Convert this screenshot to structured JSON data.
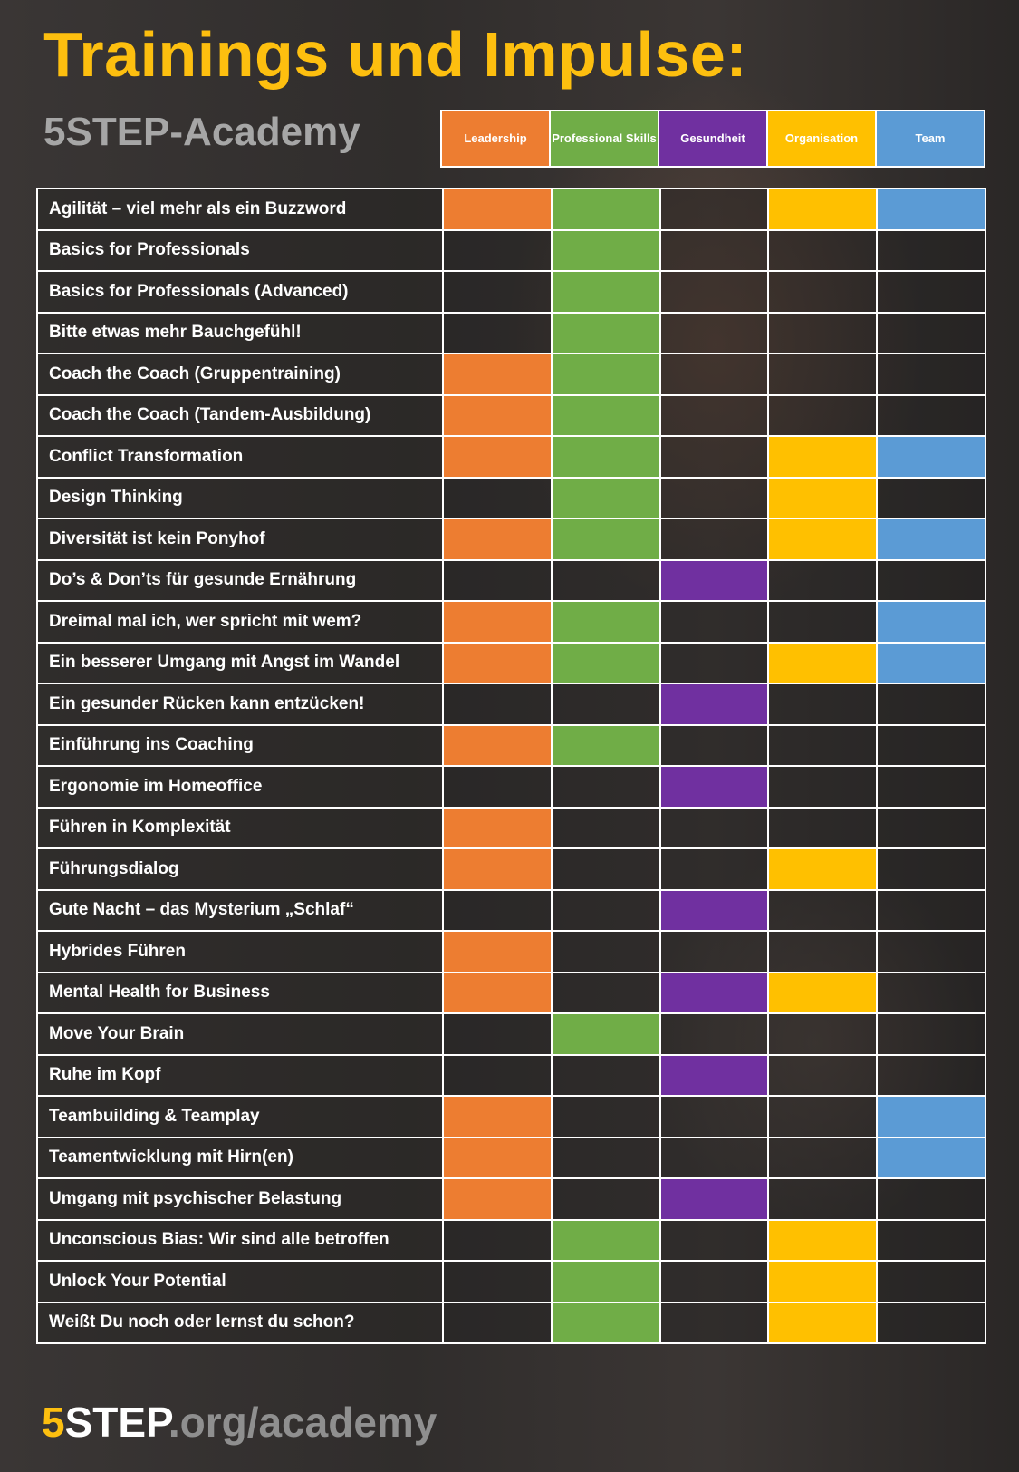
{
  "title": "Trainings und Impulse:",
  "subtitle": "5STEP-Academy",
  "categories": [
    {
      "label": "Leadership",
      "color": "#ed7d31"
    },
    {
      "label": "Professional Skills",
      "color": "#70ad47"
    },
    {
      "label": "Gesundheit",
      "color": "#7030a0"
    },
    {
      "label": "Organisation",
      "color": "#ffc000"
    },
    {
      "label": "Team",
      "color": "#5b9bd5"
    }
  ],
  "rows": [
    {
      "label": "Agilität – viel mehr als ein Buzzword",
      "marks": [
        1,
        1,
        0,
        1,
        1
      ]
    },
    {
      "label": "Basics for Professionals",
      "marks": [
        0,
        1,
        0,
        0,
        0
      ]
    },
    {
      "label": "Basics for Professionals (Advanced)",
      "marks": [
        0,
        1,
        0,
        0,
        0
      ]
    },
    {
      "label": "Bitte etwas mehr Bauchgefühl!",
      "marks": [
        0,
        1,
        0,
        0,
        0
      ]
    },
    {
      "label": "Coach the Coach (Gruppentraining)",
      "marks": [
        1,
        1,
        0,
        0,
        0
      ]
    },
    {
      "label": "Coach the Coach (Tandem-Ausbildung)",
      "marks": [
        1,
        1,
        0,
        0,
        0
      ]
    },
    {
      "label": "Conflict Transformation",
      "marks": [
        1,
        1,
        0,
        1,
        1
      ]
    },
    {
      "label": "Design Thinking",
      "marks": [
        0,
        1,
        0,
        1,
        0
      ]
    },
    {
      "label": "Diversität ist kein Ponyhof",
      "marks": [
        1,
        1,
        0,
        1,
        1
      ]
    },
    {
      "label": "Do’s & Don’ts für gesunde Ernährung",
      "marks": [
        0,
        0,
        1,
        0,
        0
      ]
    },
    {
      "label": "Dreimal mal ich, wer spricht mit wem?",
      "marks": [
        1,
        1,
        0,
        0,
        1
      ]
    },
    {
      "label": "Ein besserer Umgang mit Angst im Wandel",
      "marks": [
        1,
        1,
        0,
        1,
        1
      ]
    },
    {
      "label": "Ein gesunder Rücken kann entzücken!",
      "marks": [
        0,
        0,
        1,
        0,
        0
      ]
    },
    {
      "label": "Einführung ins Coaching",
      "marks": [
        1,
        1,
        0,
        0,
        0
      ]
    },
    {
      "label": "Ergonomie im Homeoffice",
      "marks": [
        0,
        0,
        1,
        0,
        0
      ]
    },
    {
      "label": "Führen in Komplexität",
      "marks": [
        1,
        0,
        0,
        0,
        0
      ]
    },
    {
      "label": "Führungsdialog",
      "marks": [
        1,
        0,
        0,
        1,
        0
      ]
    },
    {
      "label": "Gute Nacht – das Mysterium „Schlaf“",
      "marks": [
        0,
        0,
        1,
        0,
        0
      ]
    },
    {
      "label": "Hybrides Führen",
      "marks": [
        1,
        0,
        0,
        0,
        0
      ]
    },
    {
      "label": "Mental Health for Business",
      "marks": [
        1,
        0,
        1,
        1,
        0
      ]
    },
    {
      "label": "Move Your Brain",
      "marks": [
        0,
        1,
        0,
        0,
        0
      ]
    },
    {
      "label": "Ruhe im Kopf",
      "marks": [
        0,
        0,
        1,
        0,
        0
      ]
    },
    {
      "label": "Teambuilding & Teamplay",
      "marks": [
        1,
        0,
        0,
        0,
        1
      ]
    },
    {
      "label": "Teamentwicklung mit Hirn(en)",
      "marks": [
        1,
        0,
        0,
        0,
        1
      ]
    },
    {
      "label": "Umgang mit psychischer Belastung",
      "marks": [
        1,
        0,
        1,
        0,
        0
      ]
    },
    {
      "label": "Unconscious Bias: Wir sind alle betroffen",
      "marks": [
        0,
        1,
        0,
        1,
        0
      ]
    },
    {
      "label": "Unlock Your Potential",
      "marks": [
        0,
        1,
        0,
        1,
        0
      ]
    },
    {
      "label": "Weißt Du noch oder lernst du schon?",
      "marks": [
        0,
        1,
        0,
        1,
        0
      ]
    }
  ],
  "footer": {
    "part1": "5",
    "part2": "STEP",
    "part3": ".org/academy"
  }
}
